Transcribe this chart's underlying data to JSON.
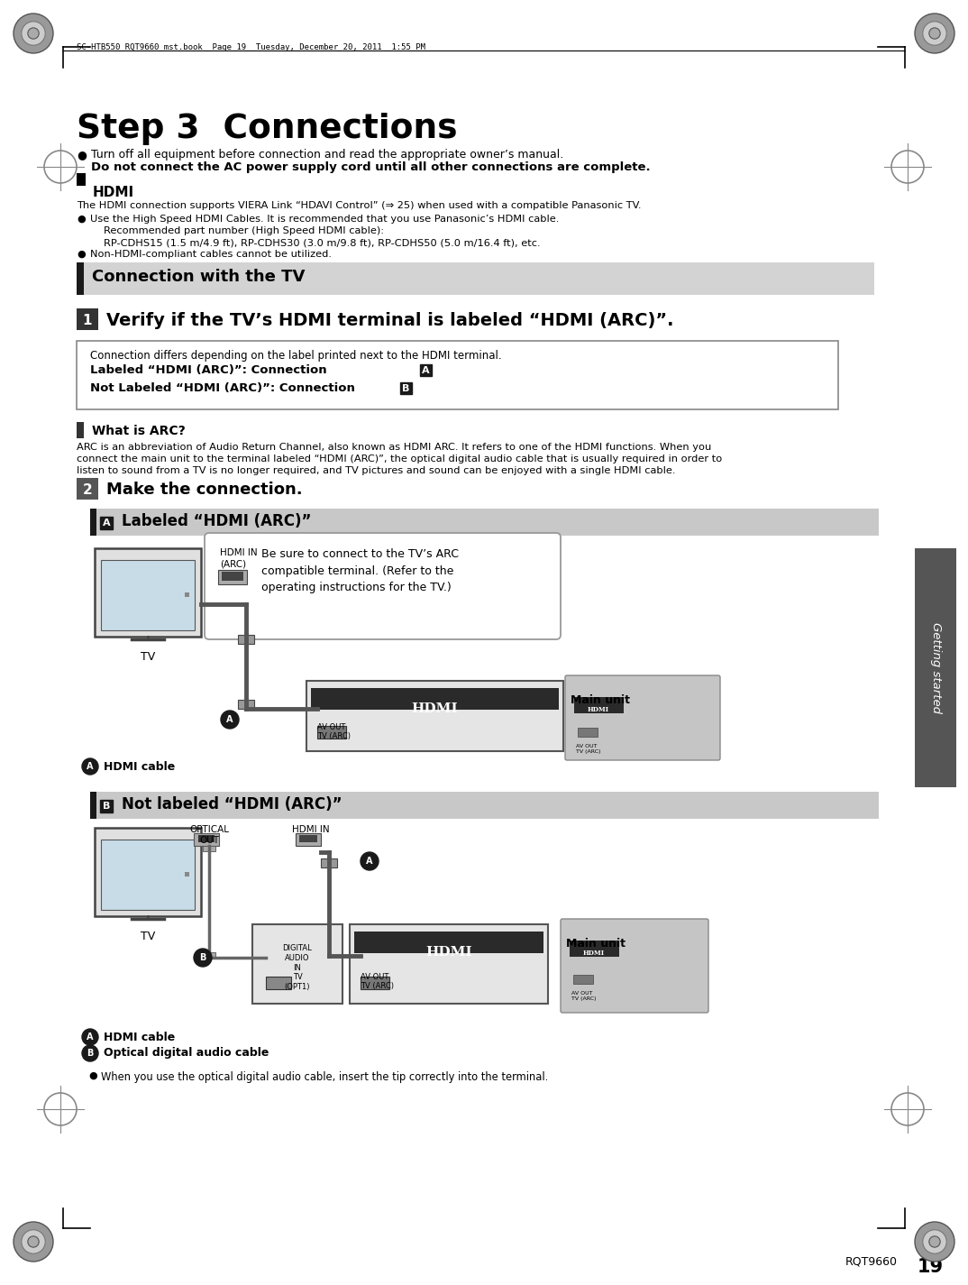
{
  "page_bg": "#ffffff",
  "title": "Step 3  Connections",
  "header_text": "SC-HTB550_RQT9660_mst.book  Page 19  Tuesday, December 20, 2011  1:55 PM",
  "page_number": "19",
  "rqt_code": "RQT9660",
  "getting_started_tab": "Getting started",
  "bullet1_line1": "Turn off all equipment before connection and read the appropriate owner’s manual.",
  "bullet1_line2": "Do not connect the AC power supply cord until all other connections are complete.",
  "hdmi_section_title": "HDMI",
  "hdmi_text1": "The HDMI connection supports VIERA Link “HDAVI Control” (⇒ 25) when used with a compatible Panasonic TV.",
  "hdmi_bullet1_line1": "Use the High Speed HDMI Cables. It is recommended that you use Panasonic’s HDMI cable.",
  "hdmi_bullet1_line2": "Recommended part number (High Speed HDMI cable):",
  "hdmi_bullet1_line3": "RP-CDHS15 (1.5 m/4.9 ft), RP-CDHS30 (3.0 m/9.8 ft), RP-CDHS50 (5.0 m/16.4 ft), etc.",
  "hdmi_bullet2": "Non-HDMI-compliant cables cannot be utilized.",
  "section_banner": "Connection with the TV",
  "step1_text": "Verify if the TV’s HDMI terminal is labeled “HDMI (ARC)”.",
  "box_line1": "Connection differs depending on the label printed next to the HDMI terminal.",
  "box_line2a": "Labeled “HDMI (ARC)”: Connection ",
  "box_label_A": "A",
  "box_line3a": "Not Labeled “HDMI (ARC)”: Connection ",
  "box_label_B": "B",
  "what_is_arc": "What is ARC?",
  "arc_text_line1": "ARC is an abbreviation of Audio Return Channel, also known as HDMI ARC. It refers to one of the HDMI functions. When you",
  "arc_text_line2": "connect the main unit to the terminal labeled “HDMI (ARC)”, the optical digital audio cable that is usually required in order to",
  "arc_text_line3": "listen to sound from a TV is no longer required, and TV pictures and sound can be enjoyed with a single HDMI cable.",
  "step2_text": "Make the connection.",
  "section_A_title": "Labeled “HDMI (ARC)”",
  "callout_text": "Be sure to connect to the TV’s ARC\ncompatible terminal. (Refer to the\noperating instructions for the TV.)",
  "hdmi_in_arc_label": "HDMI IN\n(ARC)",
  "main_unit_label_A": "Main unit",
  "av_out_tv_arc": "AV OUT\nTV (ARC)",
  "hdmi_logo_text": "hdmi",
  "A_cable_label": "HDMI cable",
  "section_B_title": "Not labeled “HDMI (ARC)”",
  "optical_out_label": "OPTICAL\nOUT",
  "hdmi_in_label_B": "HDMI IN",
  "main_unit_label_B": "Main unit",
  "digital_audio_in_label": "DIGITAL\nAUDIO\nIN\nTV\n(OPT1)",
  "av_out_tv_arc_B": "AV OUT\nTV (ARC)",
  "A_label_B": "HDMI cable",
  "B_label_B": "Optical digital audio cable",
  "optical_note": "When you use the optical digital audio cable, insert the tip correctly into the terminal.",
  "color_dark": "#1a1a1a",
  "color_gray_banner": "#d3d3d3",
  "color_gray_tab": "#5a5a5a",
  "color_white": "#ffffff",
  "color_box_border": "#888888"
}
